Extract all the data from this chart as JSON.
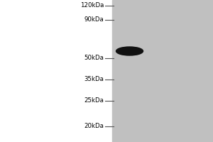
{
  "bg_color": "#ffffff",
  "gel_color": "#c0c0c0",
  "band_color": "#111111",
  "marker_labels": [
    "120kDa",
    "90kDa",
    "50kDa",
    "35kDa",
    "25kDa",
    "20kDa"
  ],
  "marker_kda": [
    120,
    90,
    50,
    35,
    25,
    20
  ],
  "band_kda": 55,
  "label_fontsize": 6.2,
  "tick_color": "#555555",
  "fig_width": 3.0,
  "fig_height": 2.0,
  "dpi": 100,
  "note": "Using pixel-based layout. Lane is narrow vertical strip. Labels on left with ticks."
}
